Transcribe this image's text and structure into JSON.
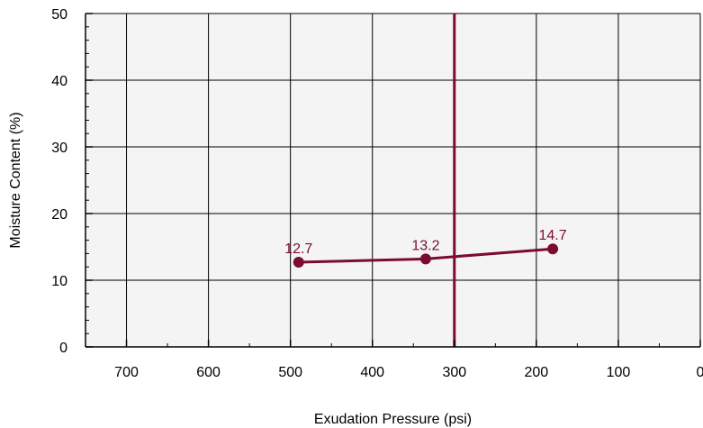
{
  "chart_data": {
    "type": "line",
    "title": "",
    "xlabel": "Exudation Pressure (psi)",
    "ylabel": "Moisture Content (%)",
    "x_reversed": true,
    "xlim": [
      750,
      0
    ],
    "ylim": [
      0,
      50
    ],
    "x_major_ticks": [
      700,
      600,
      500,
      400,
      300,
      200,
      100,
      0
    ],
    "y_major_ticks": [
      0,
      10,
      20,
      30,
      40,
      50
    ],
    "grid": true,
    "plot_background": "#f4f4f4",
    "series": [
      {
        "color": "#7b0c2e",
        "points": [
          {
            "x": 490,
            "y": 12.7,
            "label": "12.7"
          },
          {
            "x": 335,
            "y": 13.2,
            "label": "13.2"
          },
          {
            "x": 180,
            "y": 14.7,
            "label": "14.7"
          }
        ]
      }
    ],
    "reference_line": {
      "x": 300,
      "color": "#7b0c2e"
    }
  }
}
